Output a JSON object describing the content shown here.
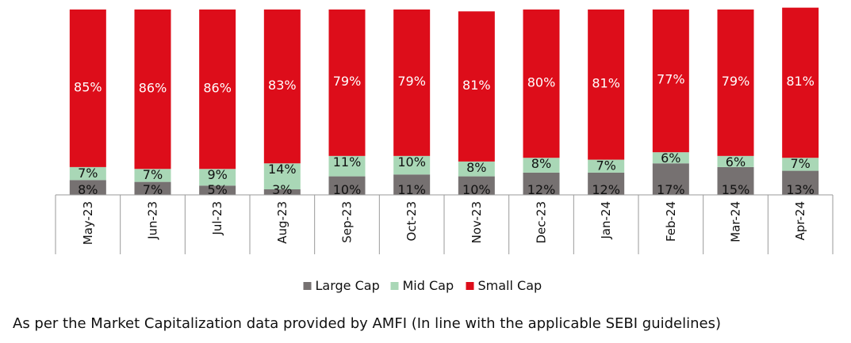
{
  "chart_data": {
    "type": "bar",
    "stacked": true,
    "normalized": true,
    "categories": [
      "May-23",
      "Jun-23",
      "Jul-23",
      "Aug-23",
      "Sep-23",
      "Oct-23",
      "Nov-23",
      "Dec-23",
      "Jan-24",
      "Feb-24",
      "Mar-24",
      "Apr-24"
    ],
    "series": [
      {
        "name": "Large Cap",
        "color": "#767171",
        "values": [
          8,
          7,
          5,
          3,
          10,
          11,
          10,
          12,
          12,
          17,
          15,
          13
        ]
      },
      {
        "name": "Mid Cap",
        "color": "#a9d7b6",
        "values": [
          7,
          7,
          9,
          14,
          11,
          10,
          8,
          8,
          7,
          6,
          6,
          7
        ]
      },
      {
        "name": "Small Cap",
        "color": "#dd0d1a",
        "values": [
          85,
          86,
          86,
          83,
          79,
          79,
          81,
          80,
          81,
          77,
          79,
          81
        ]
      }
    ],
    "ylim": [
      0,
      100
    ],
    "value_format": "percent",
    "grid": false,
    "legend_position": "bottom"
  },
  "footnote": "As per the Market Capitalization data provided by AMFI (In line with the applicable SEBI guidelines)"
}
